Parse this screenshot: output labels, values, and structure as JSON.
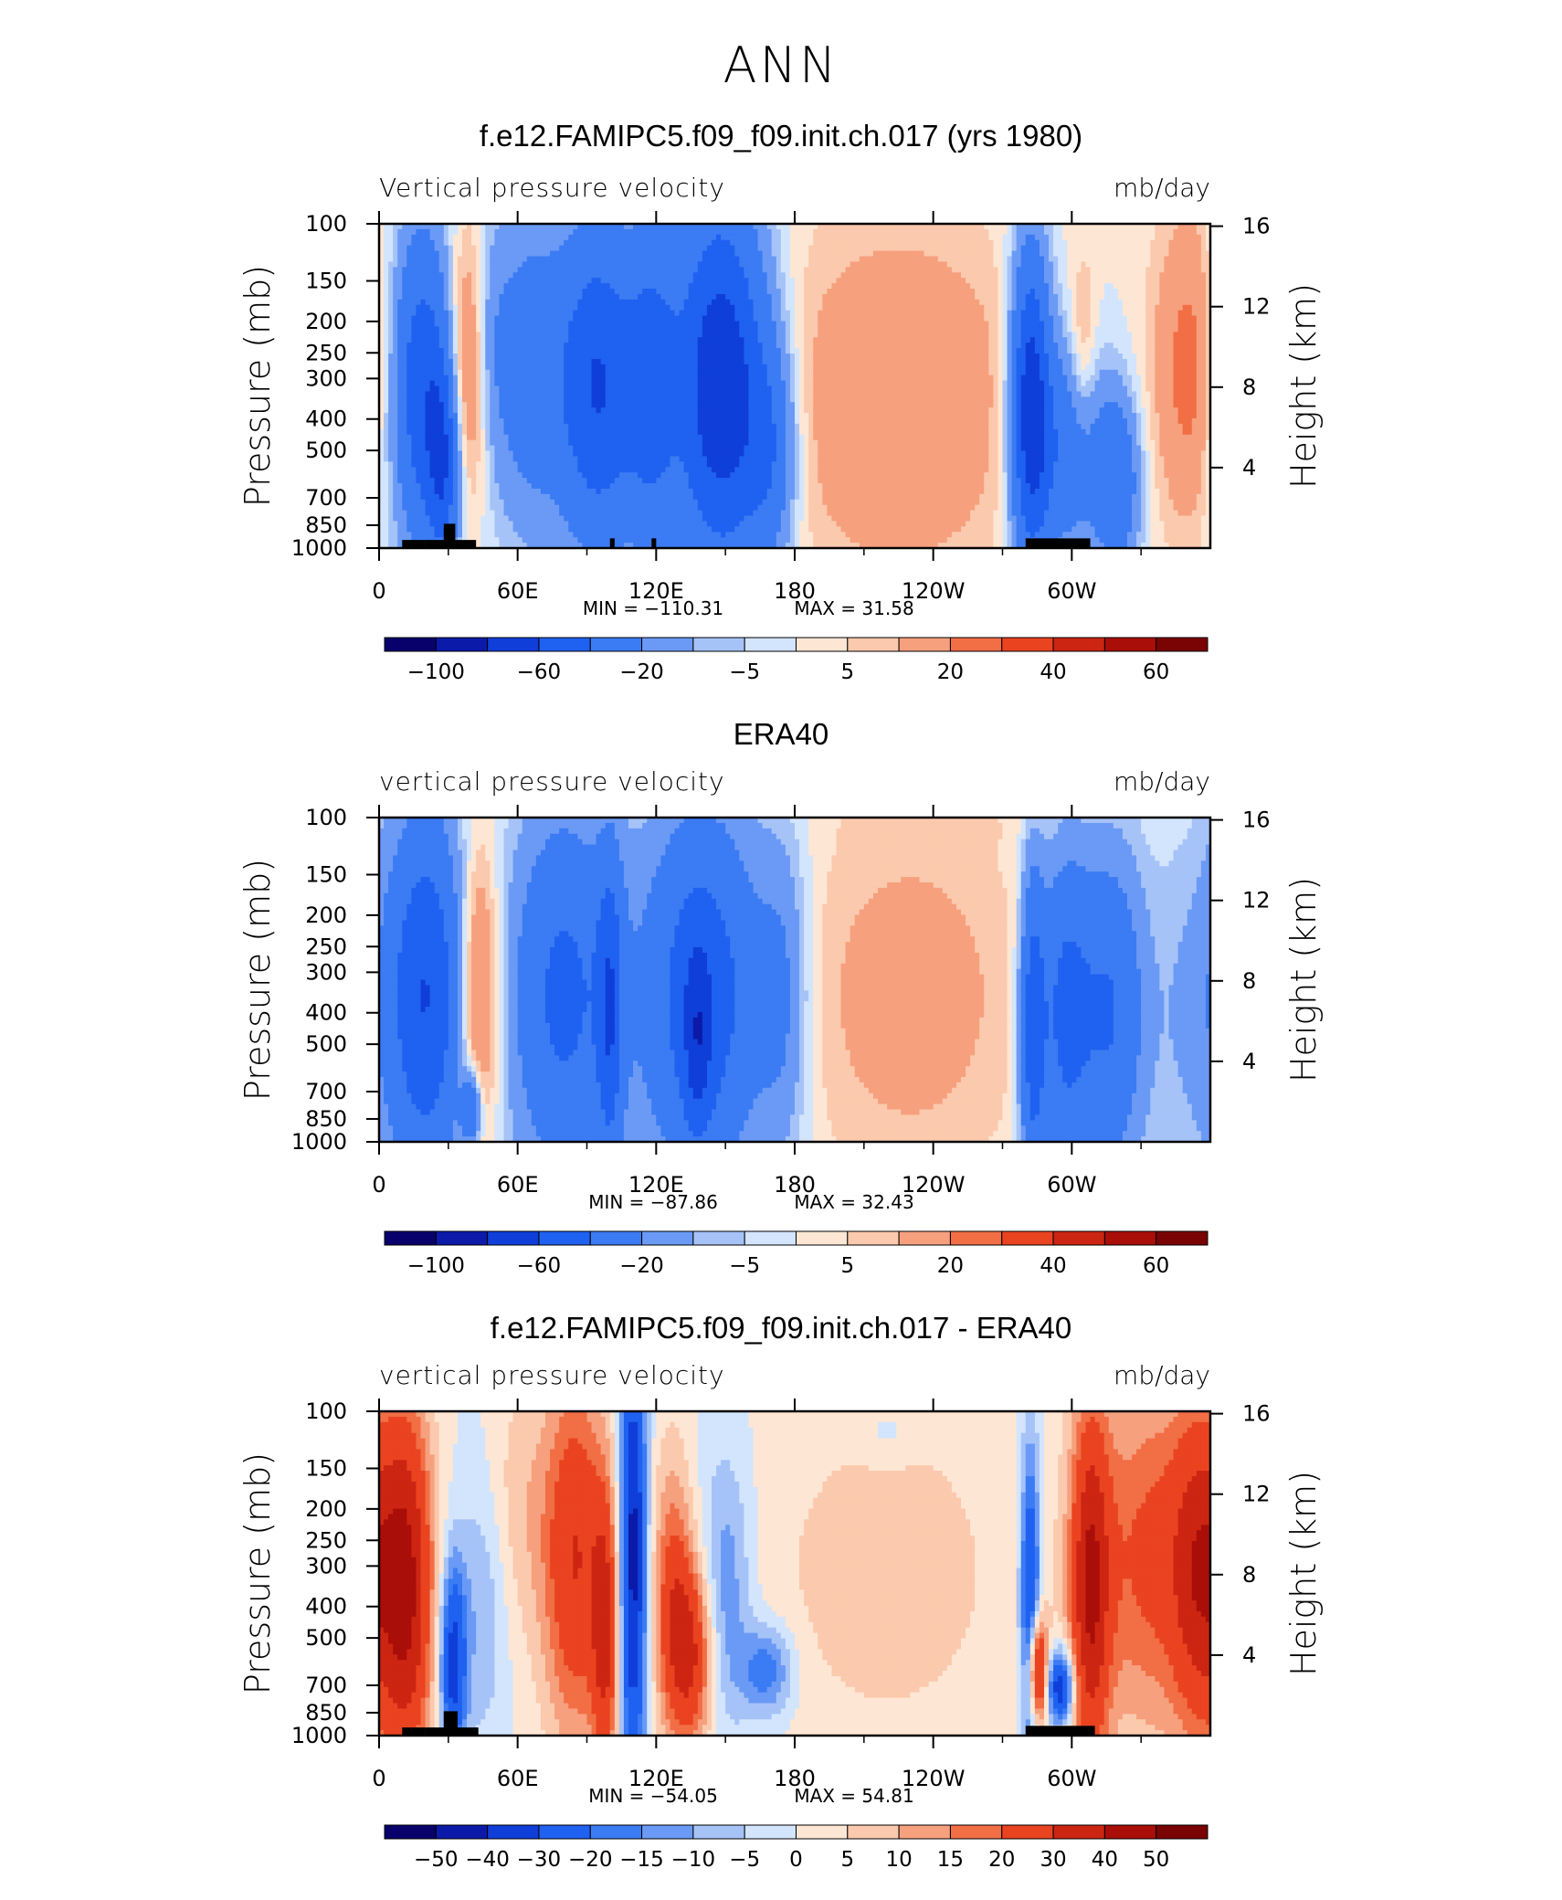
{
  "figure": {
    "title": "ANN"
  },
  "chart_data": [
    {
      "type": "heatmap",
      "title": "f.e12.FAMIPC5.f09_f09.init.ch.017 (yrs 1980)",
      "left_label": "Vertical pressure velocity",
      "units": "mb/day",
      "ylabel": "Pressure (mb)",
      "y2label": "Height (km)",
      "x_ticks": [
        "0",
        "60E",
        "120E",
        "180",
        "120W",
        "60W"
      ],
      "y_ticks": [
        "100",
        "150",
        "200",
        "250",
        "300",
        "400",
        "500",
        "700",
        "850",
        "1000"
      ],
      "y2_ticks": [
        "16",
        "12",
        "8",
        "4"
      ],
      "stats": {
        "min_label": "MIN",
        "min": "−110.31",
        "max_label": "MAX",
        "max": "31.58"
      },
      "colorbar_labels": [
        "−100",
        "−60",
        "−20",
        "−5",
        "5",
        "20",
        "40",
        "60"
      ],
      "levels": [
        -100,
        -80,
        -60,
        -40,
        -20,
        -10,
        -5,
        0,
        5,
        10,
        20,
        30,
        40,
        50,
        60
      ],
      "field": [
        {
          "lon": 0,
          "lat": 0.5,
          "sx": 3,
          "sy": 0.4,
          "a": -5
        },
        {
          "lon": 18,
          "lat": 0.5,
          "sx": 10,
          "sy": 0.35,
          "a": -55
        },
        {
          "lon": 28,
          "lat": 0.75,
          "sx": 5,
          "sy": 0.22,
          "a": -45
        },
        {
          "lon": 38,
          "lat": 0.45,
          "sx": 6,
          "sy": 0.3,
          "a": 30
        },
        {
          "lon": 48,
          "lat": 0.35,
          "sx": 6,
          "sy": 0.25,
          "a": -10
        },
        {
          "lon": 65,
          "lat": 0.45,
          "sx": 12,
          "sy": 0.35,
          "a": -30
        },
        {
          "lon": 95,
          "lat": 0.5,
          "sx": 12,
          "sy": 0.35,
          "a": -60
        },
        {
          "lon": 118,
          "lat": 0.5,
          "sx": 8,
          "sy": 0.35,
          "a": -40
        },
        {
          "lon": 148,
          "lat": 0.5,
          "sx": 14,
          "sy": 0.4,
          "a": -80
        },
        {
          "lon": 170,
          "lat": 0.7,
          "sx": 8,
          "sy": 0.25,
          "a": -30
        },
        {
          "lon": 225,
          "lat": 0.55,
          "sx": 40,
          "sy": 0.4,
          "a": 20
        },
        {
          "lon": 282,
          "lat": 0.55,
          "sx": 6,
          "sy": 0.35,
          "a": -70
        },
        {
          "lon": 297,
          "lat": 0.7,
          "sx": 12,
          "sy": 0.25,
          "a": -35
        },
        {
          "lon": 305,
          "lat": 0.4,
          "sx": 4,
          "sy": 0.2,
          "a": 15
        },
        {
          "lon": 320,
          "lat": 0.8,
          "sx": 7,
          "sy": 0.2,
          "a": -35
        },
        {
          "lon": 352,
          "lat": 0.45,
          "sx": 12,
          "sy": 0.35,
          "a": 25
        }
      ],
      "topography": [
        [
          10,
          20,
          0.025
        ],
        [
          20,
          30,
          0.025
        ],
        [
          30,
          42,
          0.025
        ],
        [
          28,
          33,
          0.075
        ],
        [
          100,
          102,
          0.03
        ],
        [
          118,
          120,
          0.03
        ],
        [
          280,
          308,
          0.03
        ]
      ]
    },
    {
      "type": "heatmap",
      "title": "ERA40",
      "left_label": "vertical pressure velocity",
      "units": "mb/day",
      "ylabel": "Pressure (mb)",
      "y2label": "Height (km)",
      "x_ticks": [
        "0",
        "60E",
        "120E",
        "180",
        "120W",
        "60W"
      ],
      "y_ticks": [
        "100",
        "150",
        "200",
        "250",
        "300",
        "400",
        "500",
        "700",
        "850",
        "1000"
      ],
      "y2_ticks": [
        "16",
        "12",
        "8",
        "4"
      ],
      "stats": {
        "min_label": "MIN",
        "min": "−87.86",
        "max_label": "MAX",
        "max": "32.43"
      },
      "colorbar_labels": [
        "−100",
        "−60",
        "−20",
        "−5",
        "5",
        "20",
        "40",
        "60"
      ],
      "levels": [
        -100,
        -80,
        -60,
        -40,
        -20,
        -10,
        -5,
        0,
        5,
        10,
        20,
        30,
        40,
        50,
        60
      ],
      "field": [
        {
          "lon": 20,
          "lat": 0.55,
          "sx": 12,
          "sy": 0.4,
          "a": -60
        },
        {
          "lon": 43,
          "lat": 0.55,
          "sx": 6,
          "sy": 0.32,
          "a": 32
        },
        {
          "lon": 40,
          "lat": 0.9,
          "sx": 3,
          "sy": 0.08,
          "a": -40
        },
        {
          "lon": 80,
          "lat": 0.55,
          "sx": 16,
          "sy": 0.4,
          "a": -45
        },
        {
          "lon": 100,
          "lat": 0.6,
          "sx": 4,
          "sy": 0.35,
          "a": -40
        },
        {
          "lon": 140,
          "lat": 0.55,
          "sx": 18,
          "sy": 0.4,
          "a": -55
        },
        {
          "lon": 138,
          "lat": 0.7,
          "sx": 4,
          "sy": 0.2,
          "a": -30
        },
        {
          "lon": 175,
          "lat": 0.55,
          "sx": 8,
          "sy": 0.35,
          "a": -20
        },
        {
          "lon": 230,
          "lat": 0.55,
          "sx": 35,
          "sy": 0.4,
          "a": 15
        },
        {
          "lon": 283,
          "lat": 0.65,
          "sx": 4,
          "sy": 0.35,
          "a": -50
        },
        {
          "lon": 297,
          "lat": 0.6,
          "sx": 8,
          "sy": 0.35,
          "a": -45
        },
        {
          "lon": 317,
          "lat": 0.6,
          "sx": 10,
          "sy": 0.35,
          "a": -40
        },
        {
          "lon": 350,
          "lat": 0.6,
          "sx": 12,
          "sy": 0.4,
          "a": -10
        },
        {
          "lon": 250,
          "lat": 0.02,
          "sx": 40,
          "sy": 0.05,
          "a": 2
        }
      ],
      "topography": []
    },
    {
      "type": "heatmap",
      "title": "f.e12.FAMIPC5.f09_f09.init.ch.017 - ERA40",
      "left_label": "vertical pressure velocity",
      "units": "mb/day",
      "ylabel": "Pressure (mb)",
      "y2label": "Height (km)",
      "x_ticks": [
        "0",
        "60E",
        "120E",
        "180",
        "120W",
        "60W"
      ],
      "y_ticks": [
        "100",
        "150",
        "200",
        "250",
        "300",
        "400",
        "500",
        "700",
        "850",
        "1000"
      ],
      "y2_ticks": [
        "16",
        "12",
        "8",
        "4"
      ],
      "stats": {
        "min_label": "MIN",
        "min": "−54.05",
        "max_label": "MAX",
        "max": "54.81"
      },
      "colorbar_labels": [
        "−50",
        "−40",
        "−30",
        "−20",
        "−15",
        "−10",
        "−5",
        "0",
        "5",
        "10",
        "15",
        "20",
        "30",
        "40",
        "50"
      ],
      "levels": [
        -50,
        -40,
        -30,
        -20,
        -15,
        -10,
        -5,
        0,
        5,
        10,
        15,
        20,
        30,
        40,
        50
      ],
      "field": [
        {
          "lon": 12,
          "lat": 0.55,
          "sx": 8,
          "sy": 0.4,
          "a": 40
        },
        {
          "lon": 32,
          "lat": 0.78,
          "sx": 4,
          "sy": 0.22,
          "a": -35
        },
        {
          "lon": 45,
          "lat": 0.6,
          "sx": 8,
          "sy": 0.3,
          "a": -10
        },
        {
          "lon": 60,
          "lat": 0.3,
          "sx": 10,
          "sy": 0.3,
          "a": 8
        },
        {
          "lon": 85,
          "lat": 0.45,
          "sx": 10,
          "sy": 0.4,
          "a": 30
        },
        {
          "lon": 98,
          "lat": 0.7,
          "sx": 4,
          "sy": 0.3,
          "a": 28
        },
        {
          "lon": 110,
          "lat": 0.45,
          "sx": 4,
          "sy": 0.5,
          "a": -45
        },
        {
          "lon": 127,
          "lat": 0.55,
          "sx": 6,
          "sy": 0.3,
          "a": 20
        },
        {
          "lon": 135,
          "lat": 0.75,
          "sx": 7,
          "sy": 0.2,
          "a": 30
        },
        {
          "lon": 150,
          "lat": 0.55,
          "sx": 8,
          "sy": 0.3,
          "a": -15
        },
        {
          "lon": 168,
          "lat": 0.8,
          "sx": 8,
          "sy": 0.1,
          "a": -20
        },
        {
          "lon": 220,
          "lat": 0.5,
          "sx": 40,
          "sy": 0.4,
          "a": 8
        },
        {
          "lon": 220,
          "lat": 0.07,
          "sx": 8,
          "sy": 0.06,
          "a": -5
        },
        {
          "lon": 282,
          "lat": 0.6,
          "sx": 3,
          "sy": 0.35,
          "a": -35
        },
        {
          "lon": 285,
          "lat": 0.8,
          "sx": 3,
          "sy": 0.12,
          "a": 45
        },
        {
          "lon": 295,
          "lat": 0.85,
          "sx": 4,
          "sy": 0.08,
          "a": -40
        },
        {
          "lon": 308,
          "lat": 0.55,
          "sx": 6,
          "sy": 0.4,
          "a": 35
        },
        {
          "lon": 335,
          "lat": 0.45,
          "sx": 20,
          "sy": 0.4,
          "a": 22
        },
        {
          "lon": 355,
          "lat": 0.5,
          "sx": 8,
          "sy": 0.35,
          "a": 25
        }
      ],
      "topography": [
        [
          10,
          20,
          0.025
        ],
        [
          20,
          30,
          0.025
        ],
        [
          30,
          43,
          0.025
        ],
        [
          28,
          34,
          0.075
        ],
        [
          280,
          310,
          0.03
        ]
      ]
    }
  ]
}
